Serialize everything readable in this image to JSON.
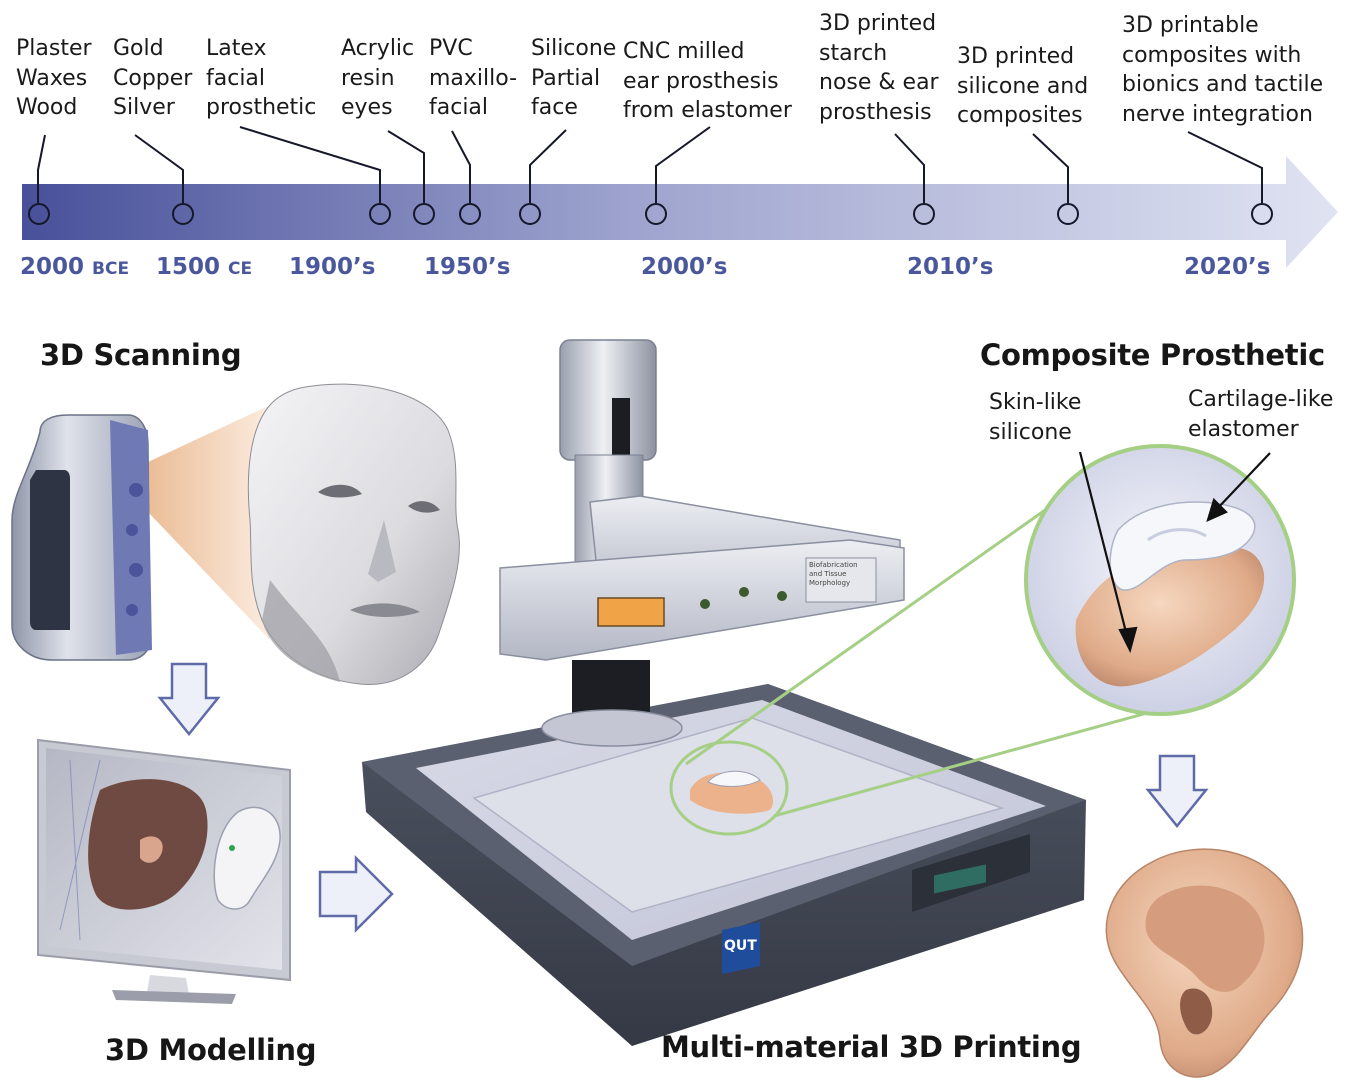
{
  "timeline": {
    "events": [
      {
        "id": "plaster",
        "text": "Plaster\nWaxes\nWood"
      },
      {
        "id": "gold",
        "text": "Gold\nCopper\nSilver"
      },
      {
        "id": "latex",
        "text": "Latex\nfacial\nprosthetic"
      },
      {
        "id": "acrylic",
        "text": "Acrylic\nresin\neyes"
      },
      {
        "id": "pvc",
        "text": "PVC\nmaxillo-\nfacial"
      },
      {
        "id": "silicone",
        "text": "Silicone\nPartial\nface"
      },
      {
        "id": "cnc",
        "text": "CNC milled\near prosthesis\nfrom elastomer"
      },
      {
        "id": "starch",
        "text": "3D printed\nstarch\nnose & ear\nprosthesis"
      },
      {
        "id": "silcomp",
        "text": "3D printed\nsilicone and\ncomposites"
      },
      {
        "id": "bionic",
        "text": "3D printable\ncomposites with\nbionics and tactile\nnerve integration"
      }
    ],
    "eras": [
      {
        "value": "2000",
        "suffix": "BCE"
      },
      {
        "value": "1500",
        "suffix": "CE"
      },
      {
        "value": "1900’s",
        "suffix": ""
      },
      {
        "value": "1950’s",
        "suffix": ""
      },
      {
        "value": "2000’s",
        "suffix": ""
      },
      {
        "value": "2010’s",
        "suffix": ""
      },
      {
        "value": "2020’s",
        "suffix": ""
      }
    ],
    "colors": {
      "arrow_start": "#48509a",
      "arrow_end": "#dfe2f1",
      "era_text": "#4b579d"
    }
  },
  "sections": {
    "scanning": "3D Scanning",
    "modelling": "3D Modelling",
    "printing": "Multi-material 3D Printing",
    "composite": "Composite Prosthetic"
  },
  "composite_labels": {
    "skin": "Skin-like\nsilicone",
    "cartilage": "Cartilage-like\nelastomer"
  },
  "printer": {
    "logo": "QUT",
    "plate_text": "Biofabrication\nand Tissue\nMorphology"
  },
  "accent_colors": {
    "magnifier_ring": "#a6cf86",
    "flow_arrow_outline": "#5f6aa8",
    "display_orange": "#f0a347"
  }
}
